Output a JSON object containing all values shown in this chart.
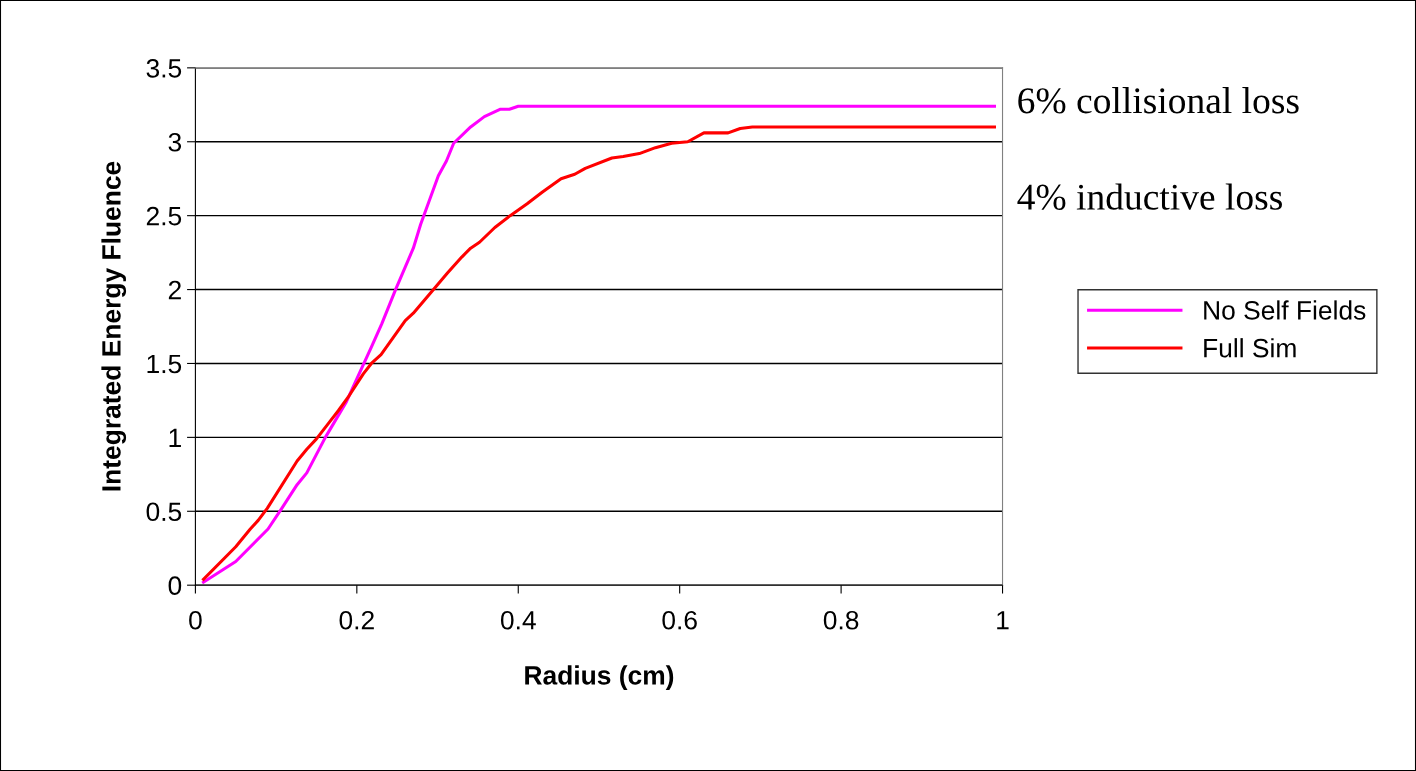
{
  "chart_data": {
    "type": "line",
    "xlabel": "Radius (cm)",
    "ylabel": "Integrated Energy Fluence",
    "xlim": [
      0,
      1
    ],
    "xticks": [
      0,
      0.2,
      0.4,
      0.6,
      0.8,
      1
    ],
    "ylim": [
      0,
      3.5
    ],
    "yticks": [
      0,
      0.5,
      1,
      1.5,
      2,
      2.5,
      3,
      3.5
    ],
    "grid": "y",
    "legend": "right",
    "marker": "none",
    "line_style": "solid",
    "annotations": [
      "6% collisional loss",
      "4% inductive loss"
    ],
    "series": [
      {
        "name": "No Self Fields",
        "color": "#ff00ff",
        "x": [
          0.01,
          0.05,
          0.09,
          0.107,
          0.126,
          0.138,
          0.161,
          0.187,
          0.197,
          0.218,
          0.231,
          0.248,
          0.27,
          0.279,
          0.301,
          0.311,
          0.32,
          0.341,
          0.358,
          0.378,
          0.389,
          0.4,
          0.99
        ],
        "values": [
          0.02,
          0.16,
          0.38,
          0.52,
          0.68,
          0.76,
          1.0,
          1.24,
          1.36,
          1.61,
          1.77,
          2.0,
          2.28,
          2.44,
          2.77,
          2.87,
          2.99,
          3.1,
          3.17,
          3.22,
          3.22,
          3.24,
          3.24
        ]
      },
      {
        "name": "Full Sim",
        "color": "#ff0000",
        "x": [
          0.01,
          0.05,
          0.068,
          0.078,
          0.089,
          0.126,
          0.138,
          0.15,
          0.167,
          0.177,
          0.189,
          0.208,
          0.218,
          0.23,
          0.26,
          0.27,
          0.301,
          0.312,
          0.33,
          0.341,
          0.352,
          0.371,
          0.39,
          0.411,
          0.43,
          0.453,
          0.47,
          0.483,
          0.516,
          0.53,
          0.55,
          0.57,
          0.59,
          0.61,
          0.63,
          0.66,
          0.675,
          0.69,
          0.99
        ],
        "values": [
          0.04,
          0.26,
          0.38,
          0.44,
          0.52,
          0.84,
          0.92,
          0.99,
          1.11,
          1.18,
          1.27,
          1.43,
          1.5,
          1.56,
          1.79,
          1.84,
          2.04,
          2.11,
          2.22,
          2.28,
          2.32,
          2.42,
          2.5,
          2.58,
          2.66,
          2.75,
          2.78,
          2.82,
          2.89,
          2.9,
          2.92,
          2.96,
          2.99,
          3.0,
          3.06,
          3.06,
          3.09,
          3.1,
          3.1
        ]
      }
    ]
  }
}
